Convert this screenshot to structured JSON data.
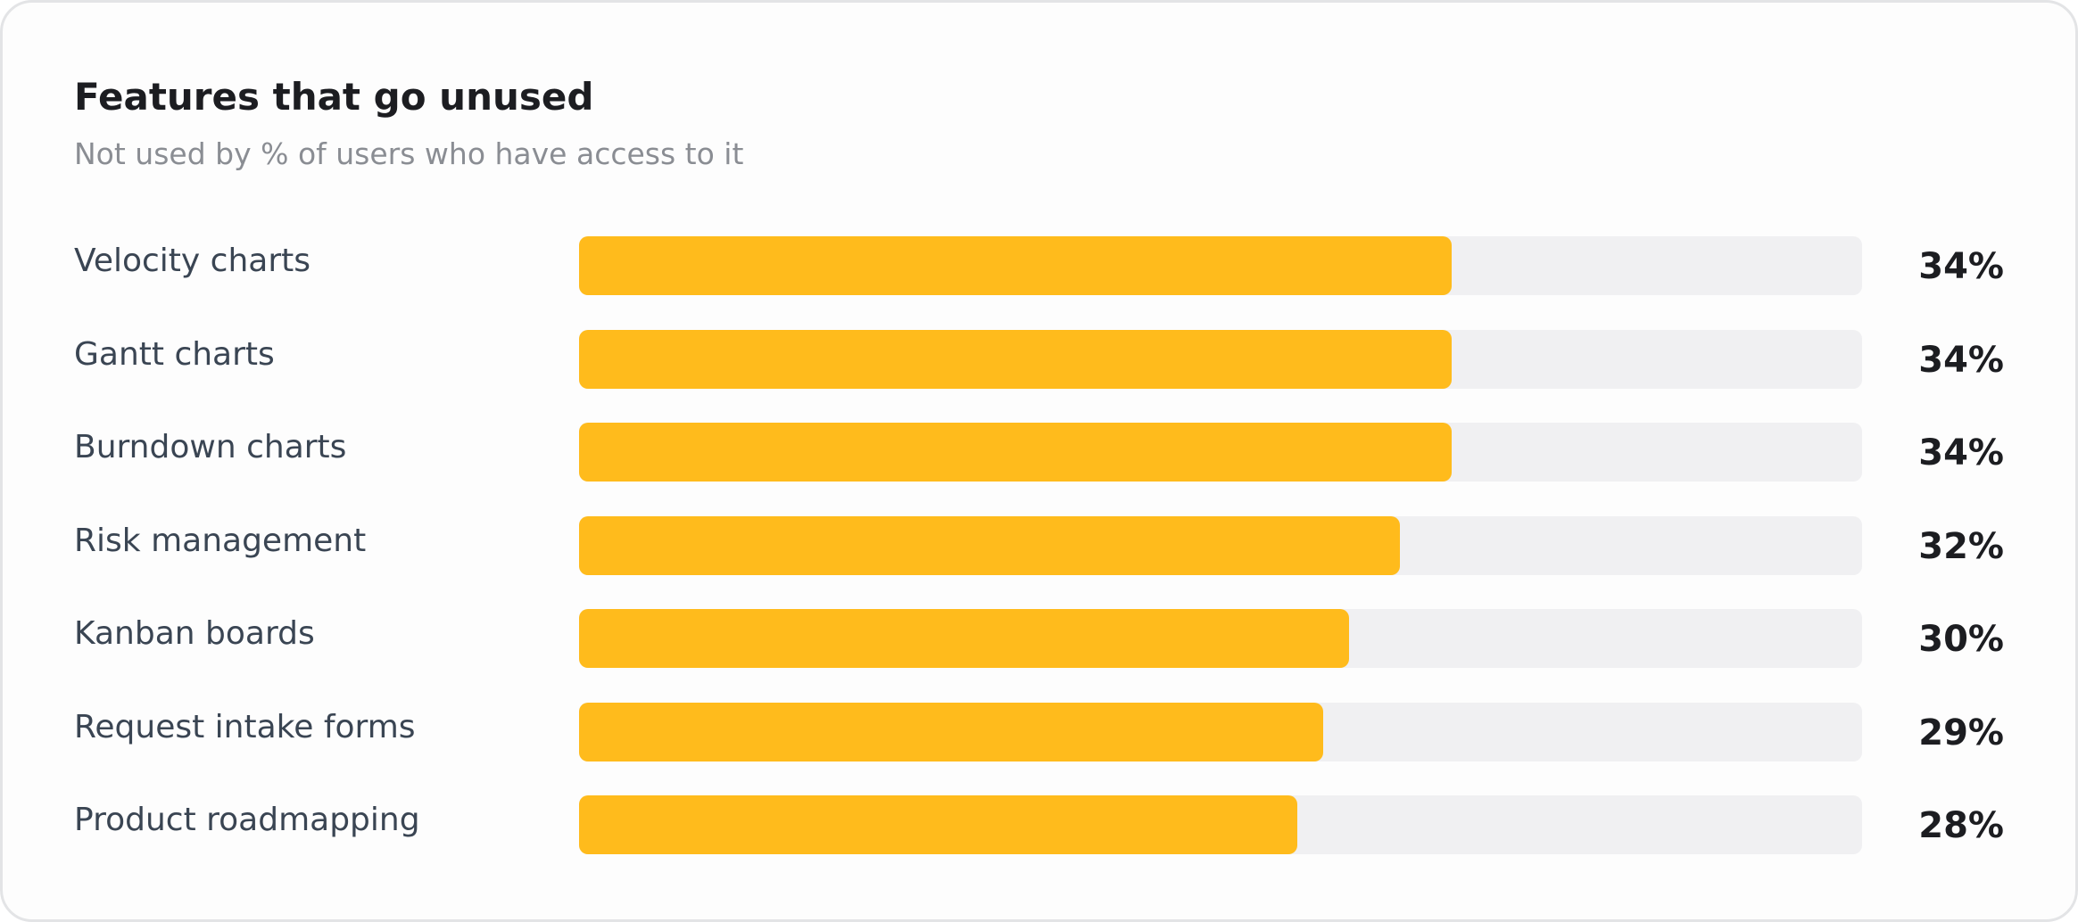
{
  "chart_data": {
    "type": "bar",
    "orientation": "horizontal",
    "title": "Features that go unused",
    "subtitle": "Not used by % of users who have access to it",
    "xlabel": "",
    "ylabel": "",
    "xlim": [
      0,
      50
    ],
    "grid": false,
    "legend": "none",
    "bar_color": "#ffbb1c",
    "track_color": "#f0f0f2",
    "categories": [
      "Velocity charts",
      "Gantt charts",
      "Burndown charts",
      "Risk management",
      "Kanban boards",
      "Request intake forms",
      "Product roadmapping"
    ],
    "values": [
      34,
      34,
      34,
      32,
      30,
      29,
      28
    ],
    "data_labels": [
      "34%",
      "34%",
      "34%",
      "32%",
      "30%",
      "29%",
      "28%"
    ]
  }
}
